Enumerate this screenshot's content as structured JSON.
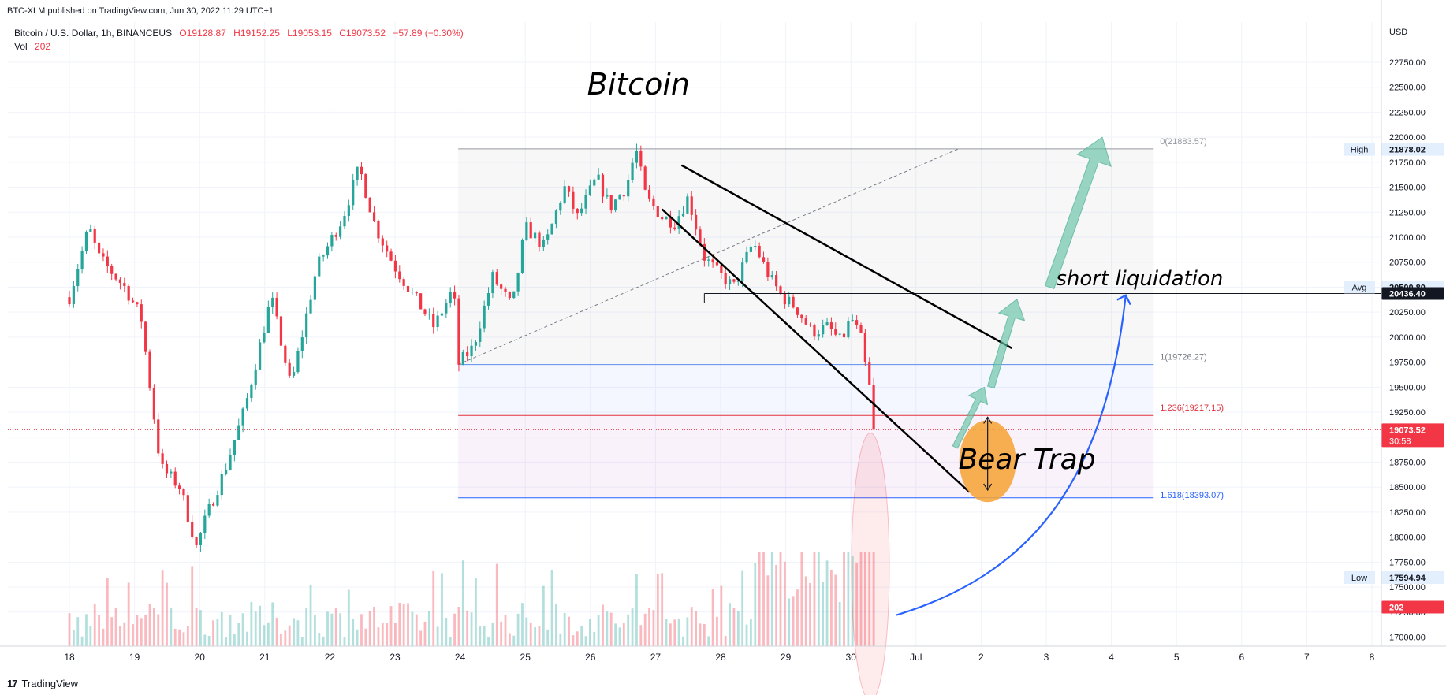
{
  "published": "BTC-XLM published on TradingView.com, Jun 30, 2022 11:29 UTC+1",
  "legend": {
    "symbol": "Bitcoin / U.S. Dollar, 1h, BINANCEUS",
    "open": "O19128.87",
    "high": "H19152.25",
    "low": "L19053.15",
    "close": "C19073.52",
    "change": "−57.89 (−0.30%)",
    "vol_label": "Vol",
    "vol_value": "202"
  },
  "brand": "TradingView",
  "colors": {
    "up": "#26a69a",
    "down": "#f23645",
    "blue": "#2962ff",
    "orange": "#f7a233",
    "teal_arrow": "#66c2a5",
    "fib_red": "#e0323d"
  },
  "chart_data": {
    "type": "candlestick",
    "title": "Bitcoin",
    "currency": "USD",
    "timeframe": "1h",
    "ylim": [
      16850,
      23000
    ],
    "y_ticks": [
      17000,
      17250,
      17500,
      17750,
      18000,
      18250,
      18500,
      18750,
      19000,
      19250,
      19500,
      19750,
      20000,
      20250,
      20500,
      20750,
      21000,
      21250,
      21500,
      21750,
      22000,
      22250,
      22500,
      22750
    ],
    "y_tick_labels": [
      "17000.00",
      "17250.00",
      "17500.00",
      "17750.00",
      "18000.00",
      "18250.00",
      "18500.00",
      "18750.00",
      "19000.00",
      "19250.00",
      "19500.00",
      "19750.00",
      "20000.00",
      "20250.00",
      "20500.00",
      "20750.00",
      "21000.00",
      "21250.00",
      "21500.00",
      "21750.00",
      "22000.00",
      "22250.00",
      "22500.00",
      "22750.00"
    ],
    "x_labels": [
      "18",
      "19",
      "20",
      "21",
      "22",
      "23",
      "24",
      "25",
      "26",
      "27",
      "28",
      "29",
      "30",
      "Jul",
      "2",
      "3",
      "4",
      "5",
      "6",
      "7",
      "8"
    ],
    "price_path": [
      [
        0.0,
        20400
      ],
      [
        0.3,
        21100
      ],
      [
        0.45,
        20800
      ],
      [
        0.85,
        20500
      ],
      [
        1.1,
        20200
      ],
      [
        1.4,
        18700
      ],
      [
        1.7,
        18500
      ],
      [
        1.95,
        17900
      ],
      [
        2.1,
        18200
      ],
      [
        2.4,
        18700
      ],
      [
        2.7,
        19300
      ],
      [
        3.1,
        20400
      ],
      [
        3.4,
        19500
      ],
      [
        3.8,
        20700
      ],
      [
        4.2,
        21200
      ],
      [
        4.45,
        21700
      ],
      [
        4.7,
        21100
      ],
      [
        5.0,
        20700
      ],
      [
        5.3,
        20400
      ],
      [
        5.6,
        20100
      ],
      [
        5.9,
        20500
      ],
      [
        5.97,
        19726.27
      ],
      [
        6.2,
        19900
      ],
      [
        6.5,
        20600
      ],
      [
        6.8,
        20300
      ],
      [
        7.0,
        21100
      ],
      [
        7.3,
        20900
      ],
      [
        7.6,
        21500
      ],
      [
        7.8,
        21200
      ],
      [
        8.1,
        21600
      ],
      [
        8.3,
        21300
      ],
      [
        8.55,
        21500
      ],
      [
        8.7,
        21883.57
      ],
      [
        8.85,
        21400
      ],
      [
        9.1,
        21200
      ],
      [
        9.3,
        21150
      ],
      [
        9.5,
        21400
      ],
      [
        9.75,
        20800
      ],
      [
        9.95,
        20650
      ],
      [
        10.2,
        20500
      ],
      [
        10.5,
        20950
      ],
      [
        10.75,
        20600
      ],
      [
        10.95,
        20400
      ],
      [
        11.15,
        20300
      ],
      [
        11.4,
        20050
      ],
      [
        11.65,
        20100
      ],
      [
        11.85,
        19950
      ],
      [
        12.0,
        20200
      ],
      [
        12.15,
        20000
      ],
      [
        12.25,
        19600
      ],
      [
        12.35,
        19300
      ],
      [
        12.4,
        19073.52
      ]
    ],
    "volume": {
      "label": "Vol",
      "last": 202
    },
    "markers": {
      "high": {
        "label": "High",
        "value": 21878.02,
        "text": "21878.02"
      },
      "avg": {
        "label": "Avg",
        "value": 20500.8,
        "text": "20500.80"
      },
      "low": {
        "label": "Low",
        "value": 17594.94,
        "text": "17594.94"
      },
      "level": {
        "value": 20436.4,
        "text": "20436.40"
      },
      "last": {
        "value": 19073.52,
        "text": "19073.52",
        "countdown": "30:58"
      },
      "vol_last": {
        "value": 202,
        "text": "202"
      }
    },
    "fibonacci": {
      "x_range": [
        5.97,
        16.65
      ],
      "levels": [
        {
          "ratio": 0,
          "value": 21883.57,
          "label": "0(21883.57)"
        },
        {
          "ratio": 1,
          "value": 19726.27,
          "label": "1(19726.27)"
        },
        {
          "ratio": 1.236,
          "value": 19217.15,
          "label": "1.236(19217.15)"
        },
        {
          "ratio": 1.618,
          "value": 18393.07,
          "label": "1.618(18393.07)"
        }
      ]
    },
    "wedge": {
      "upper": [
        [
          9.4,
          21720
        ],
        [
          14.47,
          19890
        ]
      ],
      "lower": [
        [
          9.1,
          21280
        ],
        [
          13.82,
          18450
        ]
      ]
    },
    "annotations": {
      "bear_trap": "Bear Trap",
      "short_liquidation": "short liquidation"
    }
  }
}
